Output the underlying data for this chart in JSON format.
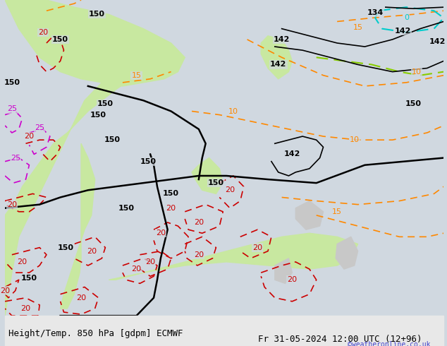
{
  "title_left": "Height/Temp. 850 hPa [gdpm] ECMWF",
  "title_right": "Fr 31-05-2024 12:00 UTC (12+96)",
  "watermark": "©weatheronline.co.uk",
  "bg_color": "#d0d8e0",
  "land_green_color": "#c8e8a0",
  "land_gray_color": "#c8c8c8",
  "bottom_bar_color": "#e8e8e8",
  "black_contour_color": "#000000",
  "red_contour_color": "#cc0000",
  "orange_contour_color": "#ff8800",
  "cyan_contour_color": "#00cccc",
  "magenta_contour_color": "#cc00cc",
  "green_contour_color": "#88cc00",
  "font_size_labels": 8,
  "font_size_bottom": 9,
  "watermark_color": "#4444cc"
}
